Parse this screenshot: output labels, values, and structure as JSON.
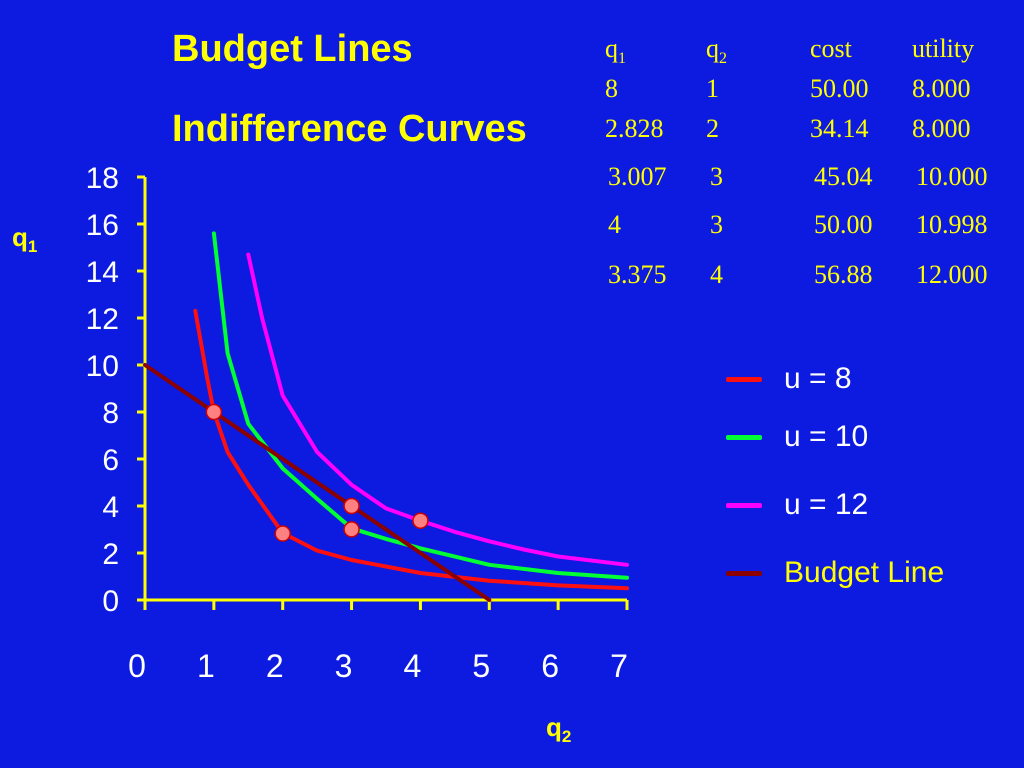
{
  "titles": {
    "line1": "Budget Lines",
    "line2": "Indifference Curves"
  },
  "axes": {
    "y_main": "q",
    "y_sub": "1",
    "x_main": "q",
    "x_sub": "2"
  },
  "table": {
    "headers": [
      {
        "main": "q",
        "sub": "1"
      },
      {
        "main": "q",
        "sub": "2"
      },
      {
        "main": "cost",
        "sub": ""
      },
      {
        "main": "utility",
        "sub": ""
      }
    ],
    "rows": [
      [
        "8",
        "1",
        "50.00",
        "8.000"
      ],
      [
        "2.828",
        "2",
        "34.14",
        "8.000"
      ],
      [
        "3.007",
        "3",
        "45.04",
        "10.000"
      ],
      [
        "4",
        "3",
        "50.00",
        "10.998"
      ],
      [
        "3.375",
        "4",
        "56.88",
        "12.000"
      ]
    ]
  },
  "legend": [
    {
      "label": "u = 8",
      "color": "#ff1010"
    },
    {
      "label": "u = 10",
      "color": "#00ff33"
    },
    {
      "label": "u = 12",
      "color": "#ff00ff"
    },
    {
      "label": "Budget Line",
      "color": "#8b0000"
    }
  ],
  "chart_data": {
    "type": "line",
    "xlim": [
      0,
      7
    ],
    "ylim": [
      0,
      18
    ],
    "x_ticks": [
      "0",
      "1",
      "2",
      "3",
      "4",
      "5",
      "6",
      "7"
    ],
    "y_ticks": [
      "0",
      "2",
      "4",
      "6",
      "8",
      "10",
      "12",
      "14",
      "16",
      "18"
    ],
    "grid": false,
    "legend_position": "right",
    "series": [
      {
        "name": "u = 8",
        "color": "#ff1010",
        "x": [
          0.73,
          0.9,
          1.0,
          1.2,
          1.5,
          2.0,
          2.5,
          3.0,
          4.0,
          5.0,
          6.0,
          7.0
        ],
        "y": [
          12.3,
          9.5,
          8.0,
          6.3,
          4.9,
          2.85,
          2.1,
          1.7,
          1.15,
          0.82,
          0.62,
          0.5
        ]
      },
      {
        "name": "u = 10",
        "color": "#00ff33",
        "x": [
          1.0,
          1.2,
          1.5,
          2.0,
          2.5,
          3.0,
          3.5,
          4.0,
          5.0,
          6.0,
          7.0
        ],
        "y": [
          15.6,
          10.5,
          7.5,
          5.6,
          4.3,
          3.05,
          2.6,
          2.2,
          1.5,
          1.15,
          0.95
        ]
      },
      {
        "name": "u = 12",
        "color": "#ff00ff",
        "x": [
          1.5,
          1.7,
          2.0,
          2.5,
          3.0,
          3.5,
          4.0,
          4.5,
          5.0,
          5.5,
          6.0,
          7.0
        ],
        "y": [
          14.7,
          12.0,
          8.7,
          6.3,
          4.9,
          3.9,
          3.375,
          2.9,
          2.5,
          2.15,
          1.85,
          1.5
        ]
      },
      {
        "name": "Budget Line",
        "color": "#8b0000",
        "x": [
          0,
          5
        ],
        "y": [
          10,
          0
        ]
      }
    ],
    "points": [
      {
        "x": 1,
        "y": 8
      },
      {
        "x": 2,
        "y": 2.828
      },
      {
        "x": 3,
        "y": 3.007
      },
      {
        "x": 3,
        "y": 4
      },
      {
        "x": 4,
        "y": 3.375
      }
    ]
  }
}
